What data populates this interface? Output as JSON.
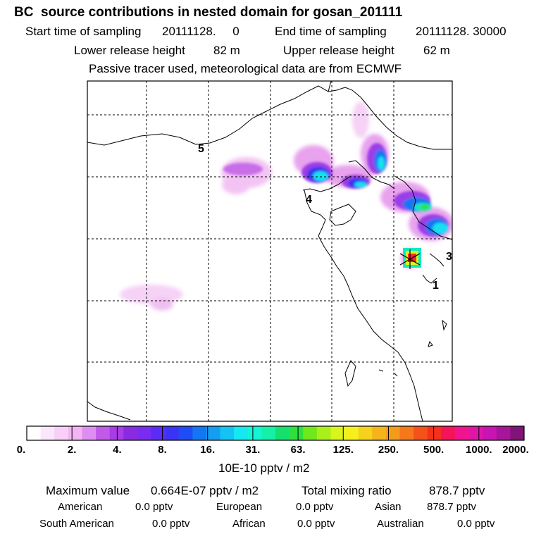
{
  "header": {
    "title": "BC  source contributions in nested domain for gosan_201111",
    "start_label": "Start time of sampling",
    "start_value": "20111128.     0",
    "end_label": "End time of sampling",
    "end_value": "20111128. 30000",
    "lower_label": "Lower release height",
    "lower_value": "82 m",
    "upper_label": "Upper release height",
    "upper_value": "62 m",
    "tracer_note": "Passive tracer used, meteorological data are from ECMWF"
  },
  "map_labels": [
    "5",
    "4",
    "3",
    "1"
  ],
  "colorbar": {
    "ticks": [
      "0.",
      "2.",
      "4.",
      "8.",
      "16.",
      "31.",
      "63.",
      "125.",
      "250.",
      "500.",
      "1000.",
      "2000."
    ],
    "unit": "10E-10 pptv / m2",
    "colors": [
      "#ffffff",
      "#fbe7fb",
      "#f7cff7",
      "#f2b4f2",
      "#de8ef0",
      "#c05be8",
      "#a83ce6",
      "#8a2be2",
      "#7a2bf0",
      "#5a2cf5",
      "#3b34f5",
      "#1e4cf5",
      "#1476f3",
      "#139ef3",
      "#14c3f3",
      "#14e8f0",
      "#14f5d5",
      "#14f0a8",
      "#14e06d",
      "#2de040",
      "#6fe81c",
      "#a9f01b",
      "#d9f51b",
      "#f5f01b",
      "#f5d21b",
      "#f5b41b",
      "#f59b1b",
      "#f5781b",
      "#f5521b",
      "#f5301b",
      "#f5145a",
      "#f01490",
      "#e014a8",
      "#c814b0",
      "#a8149a",
      "#801478"
    ]
  },
  "stats": {
    "max_label": "Maximum value",
    "max_value": "0.664E-07 pptv / m2",
    "total_label": "Total mixing ratio",
    "total_value": "878.7 pptv",
    "regions": [
      {
        "name": "American",
        "value": "0.0 pptv"
      },
      {
        "name": "European",
        "value": "0.0 pptv"
      },
      {
        "name": "Asian",
        "value": "878.7 pptv"
      },
      {
        "name": "South American",
        "value": "0.0 pptv"
      },
      {
        "name": "African",
        "value": "0.0 pptv"
      },
      {
        "name": "Australian",
        "value": "0.0 pptv"
      }
    ]
  }
}
